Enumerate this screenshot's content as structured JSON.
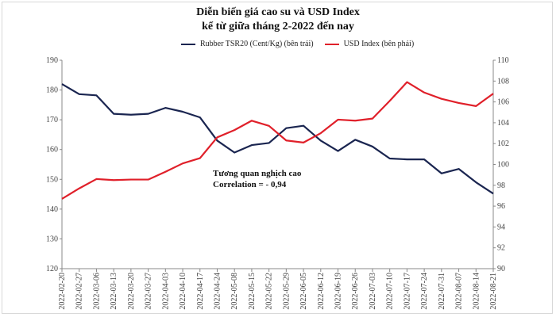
{
  "chart_data": {
    "type": "line",
    "title": "Diễn biến giá cao su và USD Index",
    "subtitle": "kể từ giữa tháng 2-2022 đến nay",
    "x": [
      "2022-02-20",
      "2022-02-27",
      "2022-03-06",
      "2022-03-13",
      "2022-03-20",
      "2022-03-27",
      "2022-04-03",
      "2022-04-10",
      "2022-04-17",
      "2022-04-24",
      "2022-05-08",
      "2022-05-15",
      "2022-05-22",
      "2022-05-29",
      "2022-06-05",
      "2022-06-12",
      "2022-06-19",
      "2022-06-26",
      "2022-07-03",
      "2022-07-10",
      "2022-07-17",
      "2022-07-24",
      "2022-07-31",
      "2022-08-07",
      "2022-08-14",
      "2022-08-21"
    ],
    "series": [
      {
        "name": "Rubber TSR20 (Cent/Kg) (bên trái)",
        "axis": "left",
        "color": "#1a2550",
        "values": [
          182,
          178.6,
          178.2,
          172,
          171.7,
          172,
          174,
          172.7,
          170.8,
          163,
          159,
          161.5,
          162.2,
          167.2,
          168,
          163,
          159.5,
          163.3,
          161,
          157,
          156.7,
          156.7,
          152,
          153.5,
          149,
          145.2
        ]
      },
      {
        "name": "USD Index (bên phải)",
        "axis": "right",
        "color": "#e0202a",
        "values": [
          96.7,
          97.7,
          98.6,
          98.5,
          98.55,
          98.55,
          99.3,
          100.1,
          100.6,
          102.6,
          103.3,
          104.2,
          103.7,
          102.3,
          102.1,
          103.0,
          104.3,
          104.2,
          104.4,
          106.1,
          107.9,
          106.9,
          106.3,
          105.9,
          105.6,
          106.8
        ]
      }
    ],
    "ylim_left": [
      120,
      190
    ],
    "yticks_left": [
      "120",
      "130",
      "140",
      "150",
      "160",
      "170",
      "180",
      "190"
    ],
    "ylim_right": [
      90,
      110
    ],
    "yticks_right": [
      "90",
      "92",
      "94",
      "96",
      "98",
      "100",
      "102",
      "104",
      "106",
      "108",
      "110"
    ],
    "grid": false,
    "legend_position": "top-center",
    "annotation": [
      "Tương quan nghịch cao",
      "Correlation =  - 0,94"
    ]
  }
}
